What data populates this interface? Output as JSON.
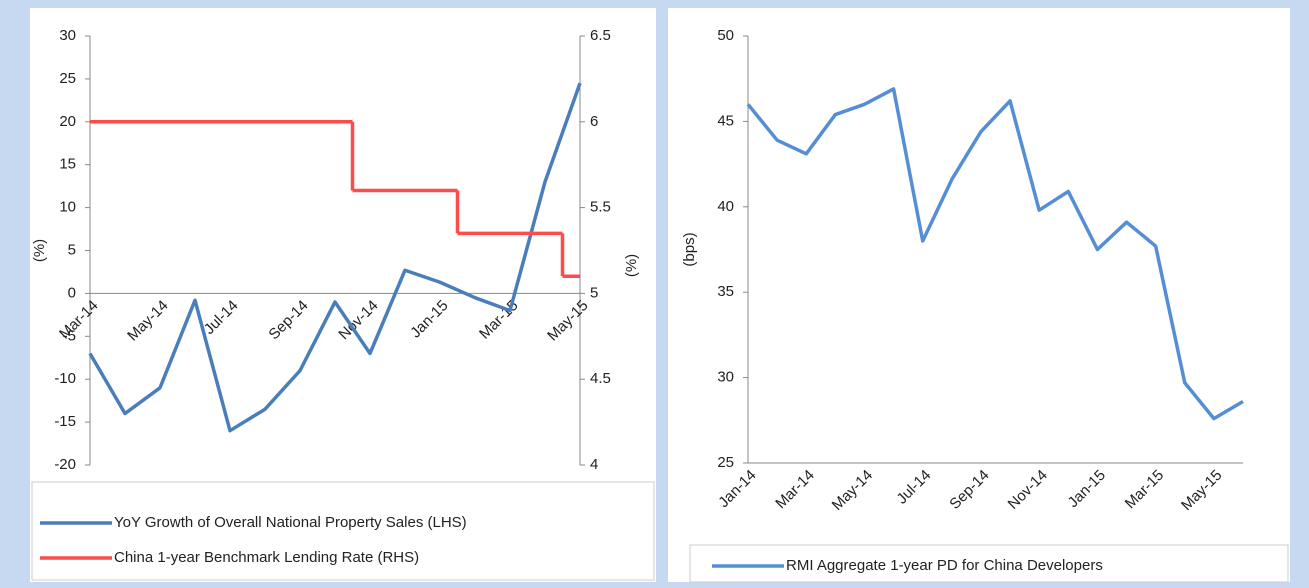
{
  "chart_data": [
    {
      "type": "line",
      "categories": [
        "Mar-14",
        null,
        "May-14",
        null,
        "Jul-14",
        null,
        "Sep-14",
        null,
        "Nov-14",
        null,
        "Jan-15",
        null,
        "Mar-15",
        null,
        "May-15"
      ],
      "series": [
        {
          "name": "YoY Growth of Overall National Property Sales (LHS)",
          "color": "#4a7ebb",
          "values": [
            -7,
            -14,
            -11,
            -0.8,
            -16,
            -13.5,
            -9,
            -1,
            -7,
            2.7,
            1.3,
            -0.5,
            -2,
            13,
            24.5
          ]
        },
        {
          "name": "China 1-year Benchmark Lending Rate (RHS)",
          "color": "#ff4b4b",
          "axis": "y2",
          "step": true,
          "values": [
            6,
            6,
            6,
            6,
            6,
            6,
            6,
            6,
            5.6,
            5.6,
            5.6,
            5.35,
            5.35,
            5.35,
            5.1
          ]
        }
      ],
      "ylabel": "(%)",
      "y2label": "(%)",
      "ylim": [
        -20,
        30
      ],
      "yticks": [
        -20,
        -15,
        -10,
        -5,
        0,
        5,
        10,
        15,
        20,
        25,
        30
      ],
      "y2lim": [
        4,
        6.5
      ],
      "y2ticks": [
        4,
        4.5,
        5,
        5.5,
        6,
        6.5
      ],
      "legend": "bottom"
    },
    {
      "type": "line",
      "categories": [
        "Jan-14",
        null,
        "Mar-14",
        null,
        "May-14",
        null,
        "Jul-14",
        null,
        "Sep-14",
        null,
        "Nov-14",
        null,
        "Jan-15",
        null,
        "Mar-15",
        null,
        "May-15",
        null
      ],
      "series": [
        {
          "name": "RMI Aggregate 1-year PD for China Developers",
          "color": "#558ed5",
          "values": [
            46,
            43.9,
            43.1,
            45.4,
            46,
            46.9,
            38,
            41.6,
            44.4,
            46.2,
            39.8,
            40.9,
            37.5,
            39.1,
            37.7,
            29.7,
            27.6,
            28.6
          ]
        }
      ],
      "ylabel": "(bps)",
      "ylim": [
        25,
        50
      ],
      "yticks": [
        25,
        30,
        35,
        40,
        45,
        50
      ],
      "legend": "bottom"
    }
  ]
}
